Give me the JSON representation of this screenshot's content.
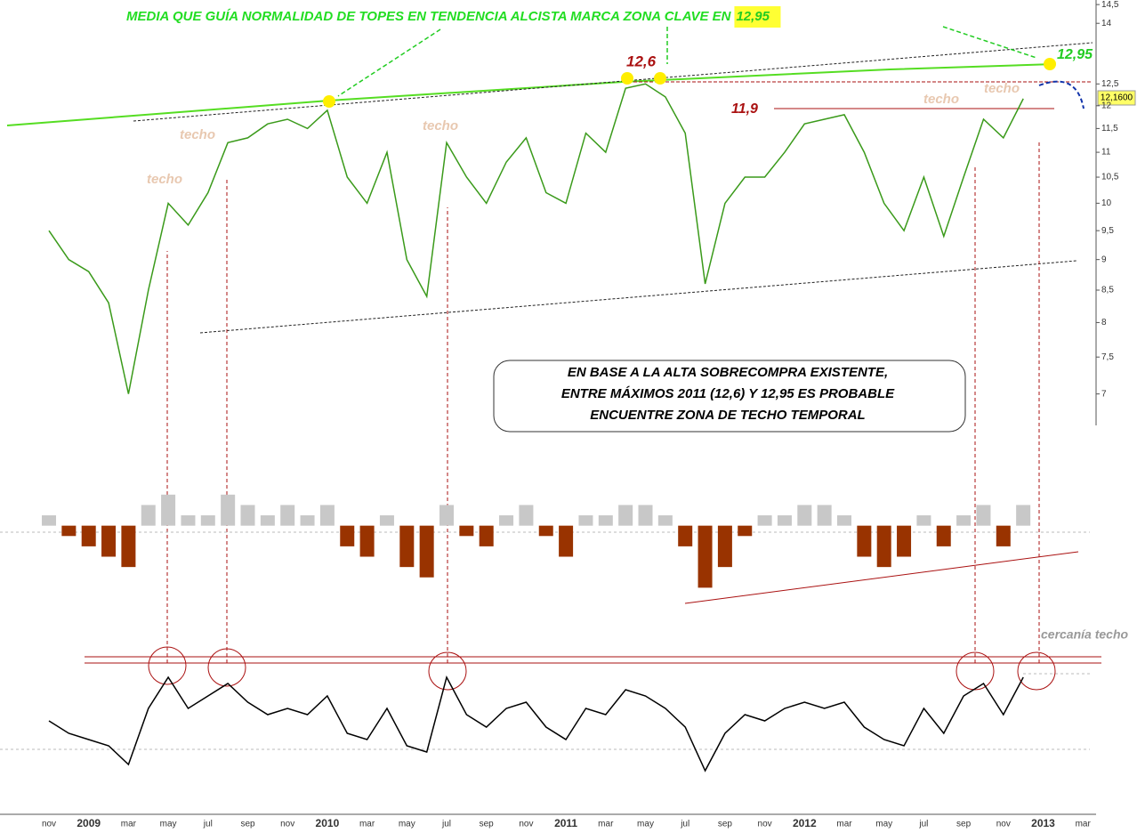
{
  "chart_data": [
    {
      "type": "line",
      "title": "MEDIA QUE GUÍA NORMALIDAD DE TOPES EN TENDENCIA ALCISTA MARCA ZONA CLAVE EN",
      "title_highlight": "12,95",
      "categories": [
        "nov",
        null,
        "2009",
        null,
        "mar",
        null,
        "may",
        null,
        "jul",
        null,
        "sep",
        null,
        "nov",
        null,
        "2010",
        null,
        "mar",
        null,
        "may",
        null,
        "jul",
        null,
        "sep",
        null,
        "nov",
        null,
        "2011",
        null,
        "mar",
        null,
        "may",
        null,
        "jul",
        null,
        "sep",
        null,
        "nov",
        null,
        "2012",
        null,
        "mar",
        null,
        "may",
        null,
        "jul",
        null,
        "sep",
        null,
        "nov",
        null,
        "2013",
        null,
        "mar"
      ],
      "values": [
        9.5,
        9.0,
        8.8,
        8.3,
        7.0,
        8.5,
        10.0,
        9.6,
        10.2,
        11.2,
        11.3,
        11.6,
        11.7,
        11.5,
        11.9,
        10.5,
        10.0,
        11.0,
        9.0,
        8.4,
        11.2,
        10.5,
        10.0,
        10.8,
        11.3,
        10.2,
        10.0,
        11.4,
        11.0,
        12.4,
        12.5,
        12.2,
        11.4,
        8.6,
        10.0,
        10.5,
        10.5,
        11.0,
        11.6,
        11.7,
        11.8,
        11.0,
        10.0,
        9.5,
        10.5,
        9.4,
        10.5,
        11.7,
        11.3,
        12.16,
        null,
        null,
        null
      ],
      "color": "#3a9a1a",
      "log_scale": true,
      "ylim": [
        6.6,
        14.6
      ],
      "yticks": [
        {
          "value": 14.5,
          "label": "14,5"
        },
        14,
        {
          "value": 12.5,
          "label": "12,5"
        },
        12,
        {
          "value": 11.5,
          "label": "11,5"
        },
        11,
        {
          "value": 10.5,
          "label": "10,5"
        },
        10,
        {
          "value": 9.5,
          "label": "9,5"
        },
        9,
        {
          "value": 8.5,
          "label": "8,5"
        },
        8,
        {
          "value": 7.5,
          "label": "7,5"
        },
        7
      ],
      "last_price_label": "12,1600",
      "annotations": [
        "12,6",
        "11,9",
        "12,95",
        "techo",
        "techo",
        "techo",
        "techo",
        "techo"
      ],
      "box_text": [
        "EN BASE A LA ALTA SOBRECOMPRA EXISTENTE,",
        "ENTRE MÁXIMOS 2011 (12,6) Y 12,95 ES PROBABLE",
        "ENCUENTRE ZONA DE TECHO TEMPORAL"
      ]
    },
    {
      "type": "bar",
      "positive_color": "#c8c8c8",
      "negative_color": "#993300",
      "ylim": [
        -7,
        3.5
      ],
      "values": [
        1,
        -1,
        -2,
        -3,
        -4,
        2,
        3,
        1,
        1,
        3,
        2,
        1,
        2,
        1,
        2,
        -2,
        -3,
        1,
        -4,
        -5,
        2,
        -1,
        -2,
        1,
        2,
        -1,
        -3,
        1,
        1,
        2,
        2,
        1,
        -2,
        -6,
        -4,
        -1,
        1,
        1,
        2,
        2,
        1,
        -3,
        -4,
        -3,
        1,
        -2,
        1,
        2,
        -2,
        2,
        null,
        null,
        null
      ]
    },
    {
      "type": "line",
      "color": "#000000",
      "ylim": [
        0,
        100
      ],
      "annotation": "cercanía techo",
      "values": [
        50,
        40,
        35,
        30,
        15,
        60,
        85,
        60,
        70,
        80,
        65,
        55,
        60,
        55,
        70,
        40,
        35,
        60,
        30,
        25,
        85,
        55,
        45,
        60,
        65,
        45,
        35,
        60,
        55,
        75,
        70,
        60,
        45,
        10,
        40,
        55,
        50,
        60,
        65,
        60,
        65,
        45,
        35,
        30,
        60,
        40,
        70,
        80,
        55,
        85,
        null,
        null,
        null
      ]
    }
  ]
}
